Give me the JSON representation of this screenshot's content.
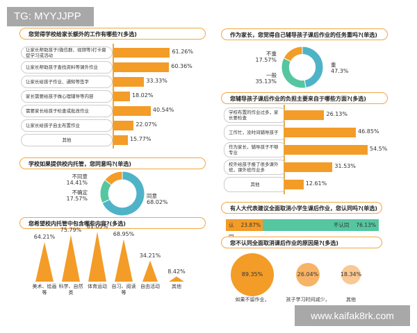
{
  "watermarks": {
    "top": "TG: MYYJJPP",
    "bottom": "www.kaifak8rk.com"
  },
  "colors": {
    "orange": "#f39c28",
    "blue": "#4fb3c8",
    "teal": "#55c6a0",
    "light_orange": "#f7b466",
    "pale_orange": "#f9c893"
  },
  "chart_data": [
    {
      "type": "bar",
      "orientation": "horizontal",
      "title": "您觉得学校给家长额外的工作有哪些?(多选)",
      "categories": [
        "让家长帮助孩子(微信群、视频等)打卡督促学习或活动",
        "让家长帮助孩子查找资料等课外作业",
        "让家长给孩子作业、通知等签字",
        "家长需要给孩子做心理辅导等内容",
        "需要家长给孩子检查或批改作业",
        "让家长给孩子自主布置作业",
        "其他"
      ],
      "values": [
        61.26,
        60.36,
        33.33,
        18.02,
        40.54,
        22.07,
        15.77
      ],
      "labels": [
        "61.26%",
        "60.36%",
        "33.33%",
        "18.02%",
        "40.54%",
        "22.07%",
        "15.77%"
      ]
    },
    {
      "type": "pie",
      "style": "donut",
      "title": "作为家长，您觉得自己辅导孩子课后作业的任务重吗?(单选)",
      "slices": [
        {
          "name": "重",
          "value": 47.3,
          "label": "47.3%",
          "color": "#4fb3c8"
        },
        {
          "name": "一般",
          "value": 35.13,
          "label": "35.13%",
          "color": "#55c6a0"
        },
        {
          "name": "不重",
          "value": 17.57,
          "label": "17.57%",
          "color": "#f39c28"
        }
      ]
    },
    {
      "type": "bar",
      "orientation": "horizontal",
      "title": "您辅导孩子课后作业的负担主要来自于哪些方面?(多选)",
      "categories": [
        "学校布置的作业过多，家长要检查",
        "工作忙，没时间辅导孩子",
        "作为家长，辅导孩子不够专业",
        "校外给孩子报了很多课外班，课外班作业多",
        "其他"
      ],
      "values": [
        26.13,
        46.85,
        54.5,
        31.53,
        12.61
      ],
      "labels": [
        "26.13%",
        "46.85%",
        "54.5%",
        "31.53%",
        "12.61%"
      ]
    },
    {
      "type": "pie",
      "style": "donut",
      "title": "学校如果提供校内托管，您同意吗?(单选)",
      "slices": [
        {
          "name": "同意",
          "value": 68.02,
          "label": "68.02%",
          "color": "#4fb3c8"
        },
        {
          "name": "不确定",
          "value": 17.57,
          "label": "17.57%",
          "color": "#55c6a0"
        },
        {
          "name": "不同意",
          "value": 14.41,
          "label": "14.41%",
          "color": "#f39c28"
        }
      ]
    },
    {
      "type": "bar",
      "style": "triangle",
      "title": "您希望校内托管中包含哪些内容?(多选)",
      "categories": [
        "美术、绘画等",
        "科学、自然类",
        "体育运动",
        "自习、阅读等",
        "自由活动",
        "其他"
      ],
      "values": [
        64.21,
        75.79,
        81.05,
        68.95,
        34.21,
        8.42
      ],
      "labels": [
        "64.21%",
        "75.79%",
        "81.05%",
        "68.95%",
        "34.21%",
        "8.42%"
      ]
    },
    {
      "type": "bar",
      "style": "stacked-100",
      "title": "有人大代表建议全面取消小学生课后作业，您认同吗?(单选)",
      "segments": [
        {
          "name": "认同",
          "value": 23.87,
          "label": "23.87%",
          "color": "#f39c28"
        },
        {
          "name": "不认同",
          "value": 76.13,
          "label": "76.13%",
          "color": "#55c6a0"
        }
      ]
    },
    {
      "type": "scatter",
      "style": "bubble",
      "title": "您不认同全面取消课后作业的原因是?(多选)",
      "categories": [
        "如果不留作业，",
        "孩子学习时间减少，",
        "其他"
      ],
      "values": [
        89.35,
        26.04,
        18.34
      ],
      "labels": [
        "89.35%",
        "26.04%",
        "18.34%"
      ]
    }
  ]
}
